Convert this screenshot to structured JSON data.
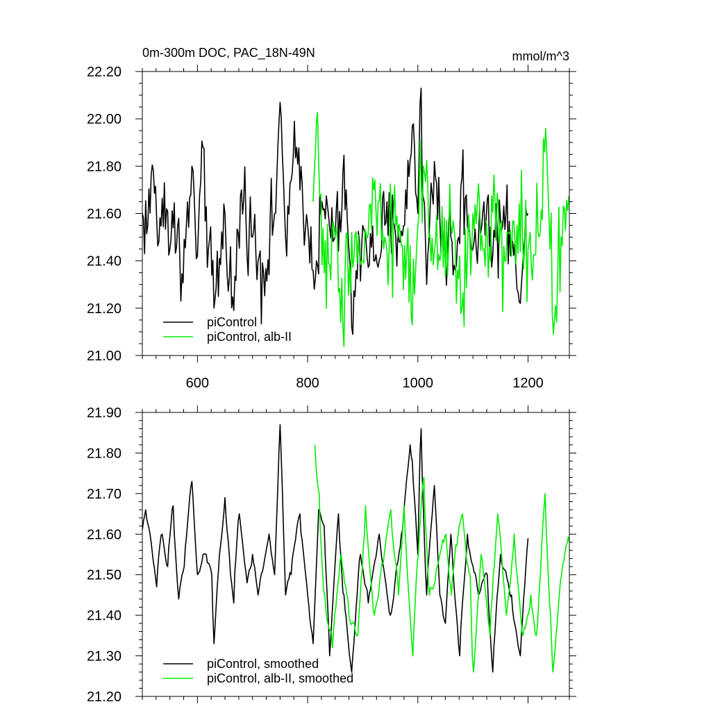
{
  "figure": {
    "title_left": "0m-300m DOC, PAC_18N-49N",
    "title_right": "mmol/m^3"
  },
  "chart_data": [
    {
      "type": "line",
      "xlim": [
        500,
        1275
      ],
      "ylim": [
        21.0,
        22.2
      ],
      "x_ticks": [
        600,
        800,
        1000,
        1200
      ],
      "y_ticks": [
        21.0,
        21.2,
        21.4,
        21.6,
        21.8,
        22.0,
        22.2
      ],
      "y_tick_labels": [
        "21.00",
        "21.20",
        "21.40",
        "21.60",
        "21.80",
        "22.00",
        "22.20"
      ],
      "grid": false,
      "legend": "bottom-left",
      "series": [
        {
          "name": "piControl",
          "color": "#000000",
          "x_start": 500,
          "x_end": 1200,
          "anchors": [
            [
              500,
              21.6
            ],
            [
              510,
              21.55
            ],
            [
              520,
              21.78
            ],
            [
              530,
              21.48
            ],
            [
              540,
              21.73
            ],
            [
              550,
              21.45
            ],
            [
              565,
              21.58
            ],
            [
              570,
              21.23
            ],
            [
              590,
              21.8
            ],
            [
              600,
              21.42
            ],
            [
              610,
              21.88
            ],
            [
              620,
              21.45
            ],
            [
              630,
              21.2
            ],
            [
              650,
              21.6
            ],
            [
              665,
              21.19
            ],
            [
              680,
              21.7
            ],
            [
              700,
              21.5
            ],
            [
              720,
              21.35
            ],
            [
              740,
              21.6
            ],
            [
              750,
              22.07
            ],
            [
              760,
              21.5
            ],
            [
              780,
              21.88
            ],
            [
              800,
              21.55
            ],
            [
              815,
              21.4
            ],
            [
              830,
              21.62
            ],
            [
              850,
              21.5
            ],
            [
              870,
              21.7
            ],
            [
              880,
              21.12
            ],
            [
              900,
              21.55
            ],
            [
              920,
              21.4
            ],
            [
              940,
              21.55
            ],
            [
              960,
              21.5
            ],
            [
              980,
              21.62
            ],
            [
              990,
              21.97
            ],
            [
              1000,
              21.6
            ],
            [
              1005,
              22.13
            ],
            [
              1015,
              21.3
            ],
            [
              1030,
              21.82
            ],
            [
              1050,
              21.4
            ],
            [
              1060,
              21.5
            ],
            [
              1070,
              21.38
            ],
            [
              1080,
              21.75
            ],
            [
              1100,
              21.45
            ],
            [
              1120,
              21.65
            ],
            [
              1140,
              21.5
            ],
            [
              1160,
              21.6
            ],
            [
              1180,
              21.28
            ],
            [
              1200,
              21.6
            ]
          ],
          "noise": 0.13
        },
        {
          "name": "piControl, alb-II",
          "color": "#00ee00",
          "x_start": 810,
          "x_end": 1275,
          "anchors": [
            [
              810,
              21.65
            ],
            [
              815,
              21.99
            ],
            [
              820,
              21.82
            ],
            [
              830,
              21.35
            ],
            [
              850,
              21.5
            ],
            [
              860,
              21.14
            ],
            [
              880,
              21.52
            ],
            [
              900,
              21.4
            ],
            [
              920,
              21.7
            ],
            [
              940,
              21.5
            ],
            [
              960,
              21.55
            ],
            [
              980,
              21.45
            ],
            [
              990,
              21.13
            ],
            [
              1000,
              21.55
            ],
            [
              1010,
              21.8
            ],
            [
              1020,
              21.5
            ],
            [
              1040,
              21.4
            ],
            [
              1060,
              21.55
            ],
            [
              1080,
              21.2
            ],
            [
              1100,
              21.6
            ],
            [
              1120,
              21.45
            ],
            [
              1140,
              21.65
            ],
            [
              1160,
              21.4
            ],
            [
              1180,
              21.55
            ],
            [
              1200,
              21.45
            ],
            [
              1220,
              21.5
            ],
            [
              1230,
              21.86
            ],
            [
              1240,
              21.45
            ],
            [
              1245,
              21.09
            ],
            [
              1260,
              21.5
            ],
            [
              1275,
              21.67
            ]
          ],
          "noise": 0.16
        }
      ],
      "legend_entries": [
        "piControl",
        "piControl, alb-II"
      ]
    },
    {
      "type": "line",
      "xlim": [
        500,
        1275
      ],
      "ylim": [
        21.2,
        21.9
      ],
      "x_ticks": [
        600,
        800,
        1000,
        1200
      ],
      "y_ticks": [
        21.2,
        21.3,
        21.4,
        21.5,
        21.6,
        21.7,
        21.8,
        21.9
      ],
      "y_tick_labels": [
        "21.20",
        "21.30",
        "21.40",
        "21.50",
        "21.60",
        "21.70",
        "21.80",
        "21.90"
      ],
      "grid": false,
      "legend": "bottom-left",
      "series": [
        {
          "name": "piControl, smoothed",
          "color": "#000000",
          "x_start": 500,
          "x_end": 1200,
          "anchors": [
            [
              500,
              21.61
            ],
            [
              505,
              21.66
            ],
            [
              515,
              21.58
            ],
            [
              525,
              21.47
            ],
            [
              535,
              21.6
            ],
            [
              545,
              21.52
            ],
            [
              555,
              21.67
            ],
            [
              565,
              21.44
            ],
            [
              575,
              21.52
            ],
            [
              590,
              21.73
            ],
            [
              600,
              21.5
            ],
            [
              615,
              21.55
            ],
            [
              625,
              21.5
            ],
            [
              630,
              21.33
            ],
            [
              640,
              21.55
            ],
            [
              650,
              21.69
            ],
            [
              660,
              21.5
            ],
            [
              665,
              21.43
            ],
            [
              675,
              21.65
            ],
            [
              690,
              21.48
            ],
            [
              700,
              21.55
            ],
            [
              710,
              21.45
            ],
            [
              730,
              21.6
            ],
            [
              740,
              21.5
            ],
            [
              750,
              21.87
            ],
            [
              760,
              21.45
            ],
            [
              770,
              21.5
            ],
            [
              785,
              21.65
            ],
            [
              800,
              21.45
            ],
            [
              810,
              21.33
            ],
            [
              820,
              21.66
            ],
            [
              830,
              21.62
            ],
            [
              840,
              21.3
            ],
            [
              855,
              21.65
            ],
            [
              865,
              21.45
            ],
            [
              880,
              21.26
            ],
            [
              895,
              21.55
            ],
            [
              910,
              21.43
            ],
            [
              930,
              21.6
            ],
            [
              950,
              21.4
            ],
            [
              970,
              21.6
            ],
            [
              985,
              21.82
            ],
            [
              990,
              21.78
            ],
            [
              1000,
              21.55
            ],
            [
              1005,
              21.86
            ],
            [
              1015,
              21.45
            ],
            [
              1030,
              21.72
            ],
            [
              1040,
              21.45
            ],
            [
              1050,
              21.38
            ],
            [
              1060,
              21.6
            ],
            [
              1075,
              21.3
            ],
            [
              1090,
              21.6
            ],
            [
              1110,
              21.45
            ],
            [
              1125,
              21.5
            ],
            [
              1135,
              21.26
            ],
            [
              1150,
              21.55
            ],
            [
              1170,
              21.45
            ],
            [
              1185,
              21.3
            ],
            [
              1200,
              21.59
            ]
          ],
          "noise": 0.035
        },
        {
          "name": "piControl, alb-II, smoothed",
          "color": "#00ee00",
          "x_start": 813,
          "x_end": 1275,
          "anchors": [
            [
              813,
              21.82
            ],
            [
              820,
              21.7
            ],
            [
              830,
              21.45
            ],
            [
              845,
              21.32
            ],
            [
              860,
              21.55
            ],
            [
              875,
              21.4
            ],
            [
              890,
              21.35
            ],
            [
              905,
              21.67
            ],
            [
              920,
              21.4
            ],
            [
              935,
              21.53
            ],
            [
              950,
              21.66
            ],
            [
              965,
              21.45
            ],
            [
              975,
              21.67
            ],
            [
              990,
              21.3
            ],
            [
              1000,
              21.55
            ],
            [
              1010,
              21.74
            ],
            [
              1020,
              21.45
            ],
            [
              1035,
              21.52
            ],
            [
              1050,
              21.6
            ],
            [
              1060,
              21.45
            ],
            [
              1080,
              21.65
            ],
            [
              1095,
              21.5
            ],
            [
              1100,
              21.26
            ],
            [
              1115,
              21.55
            ],
            [
              1130,
              21.35
            ],
            [
              1145,
              21.65
            ],
            [
              1160,
              21.4
            ],
            [
              1175,
              21.6
            ],
            [
              1190,
              21.35
            ],
            [
              1205,
              21.45
            ],
            [
              1215,
              21.35
            ],
            [
              1230,
              21.7
            ],
            [
              1240,
              21.4
            ],
            [
              1245,
              21.26
            ],
            [
              1260,
              21.5
            ],
            [
              1275,
              21.58
            ]
          ],
          "noise": 0.05
        }
      ],
      "legend_entries": [
        "piControl, smoothed",
        "piControl, alb-II, smoothed"
      ]
    }
  ]
}
